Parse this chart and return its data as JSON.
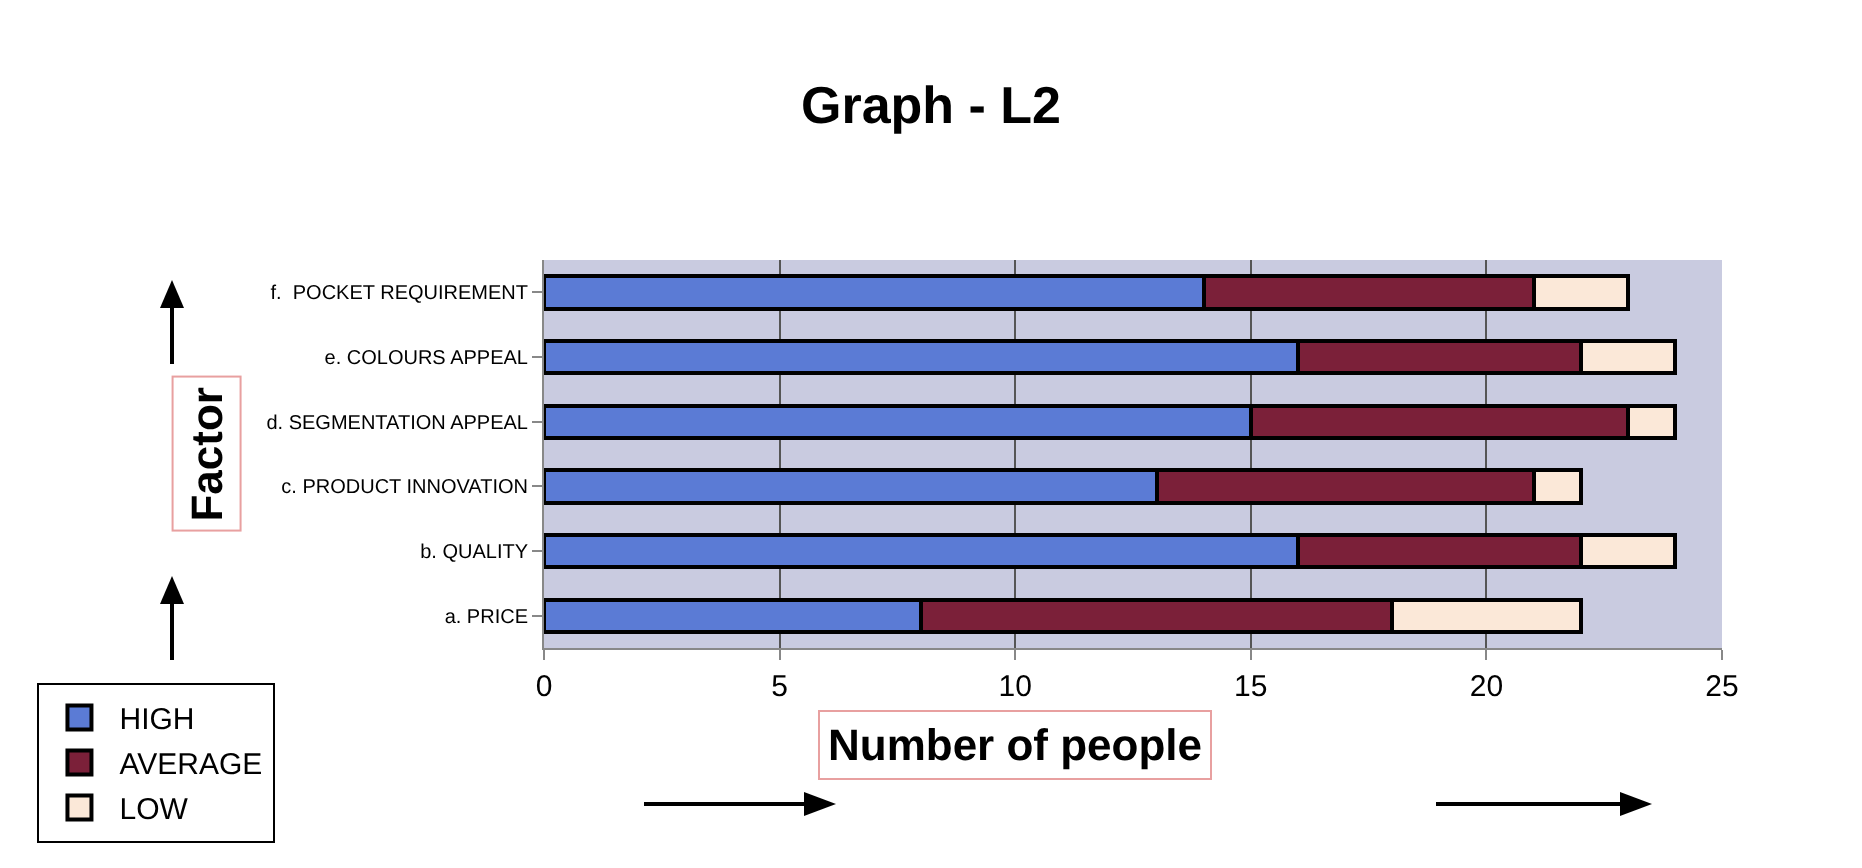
{
  "chart_data": {
    "type": "bar",
    "title": "Graph - L2",
    "xlabel": "Number of people",
    "ylabel": "Factor",
    "orientation": "horizontal",
    "stacked": true,
    "categories": [
      "f.  POCKET REQUIREMENT",
      "e. COLOURS APPEAL",
      "d. SEGMENTATION APPEAL",
      "c. PRODUCT INNOVATION",
      "b. QUALITY",
      "a. PRICE"
    ],
    "series": [
      {
        "name": "HIGH",
        "color": "#5b7bd5",
        "values": [
          14,
          16,
          15,
          13,
          16,
          8
        ]
      },
      {
        "name": "AVERAGE",
        "color": "#7b2039",
        "values": [
          7,
          6,
          8,
          8,
          6,
          10
        ]
      },
      {
        "name": "LOW",
        "color": "#fbe8d8",
        "values": [
          2,
          2,
          1,
          1,
          2,
          4
        ]
      }
    ],
    "xlim": [
      0,
      25
    ],
    "xticks": [
      0,
      5,
      10,
      15,
      20,
      25
    ],
    "grid": "x",
    "legend": "bottom left"
  }
}
